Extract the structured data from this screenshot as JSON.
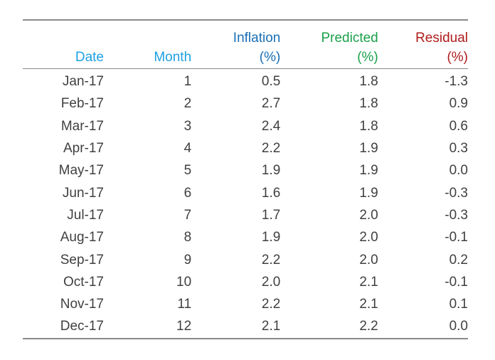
{
  "chart_data": {
    "type": "table",
    "columns": [
      {
        "key": "date",
        "label_line1": "",
        "label_line2": "Date",
        "color": "#1ea0e0"
      },
      {
        "key": "month",
        "label_line1": "",
        "label_line2": "Month",
        "color": "#1ea0e0"
      },
      {
        "key": "inflation",
        "label_line1": "Inflation",
        "label_line2": "(%)",
        "color": "#1a6fb5"
      },
      {
        "key": "predicted",
        "label_line1": "Predicted",
        "label_line2": "(%)",
        "color": "#1aa04a"
      },
      {
        "key": "residual",
        "label_line1": "Residual",
        "label_line2": "(%)",
        "color": "#b01c1c"
      }
    ],
    "rows": [
      [
        "Jan-17",
        "1",
        "0.5",
        "1.8",
        "-1.3"
      ],
      [
        "Feb-17",
        "2",
        "2.7",
        "1.8",
        "0.9"
      ],
      [
        "Mar-17",
        "3",
        "2.4",
        "1.8",
        "0.6"
      ],
      [
        "Apr-17",
        "4",
        "2.2",
        "1.9",
        "0.3"
      ],
      [
        "May-17",
        "5",
        "1.9",
        "1.9",
        "0.0"
      ],
      [
        "Jun-17",
        "6",
        "1.6",
        "1.9",
        "-0.3"
      ],
      [
        "Jul-17",
        "7",
        "1.7",
        "2.0",
        "-0.3"
      ],
      [
        "Aug-17",
        "8",
        "1.9",
        "2.0",
        "-0.1"
      ],
      [
        "Sep-17",
        "9",
        "2.2",
        "2.0",
        "0.2"
      ],
      [
        "Oct-17",
        "10",
        "2.0",
        "2.1",
        "-0.1"
      ],
      [
        "Nov-17",
        "11",
        "2.2",
        "2.1",
        "0.1"
      ],
      [
        "Dec-17",
        "12",
        "2.1",
        "2.2",
        "0.0"
      ]
    ]
  }
}
